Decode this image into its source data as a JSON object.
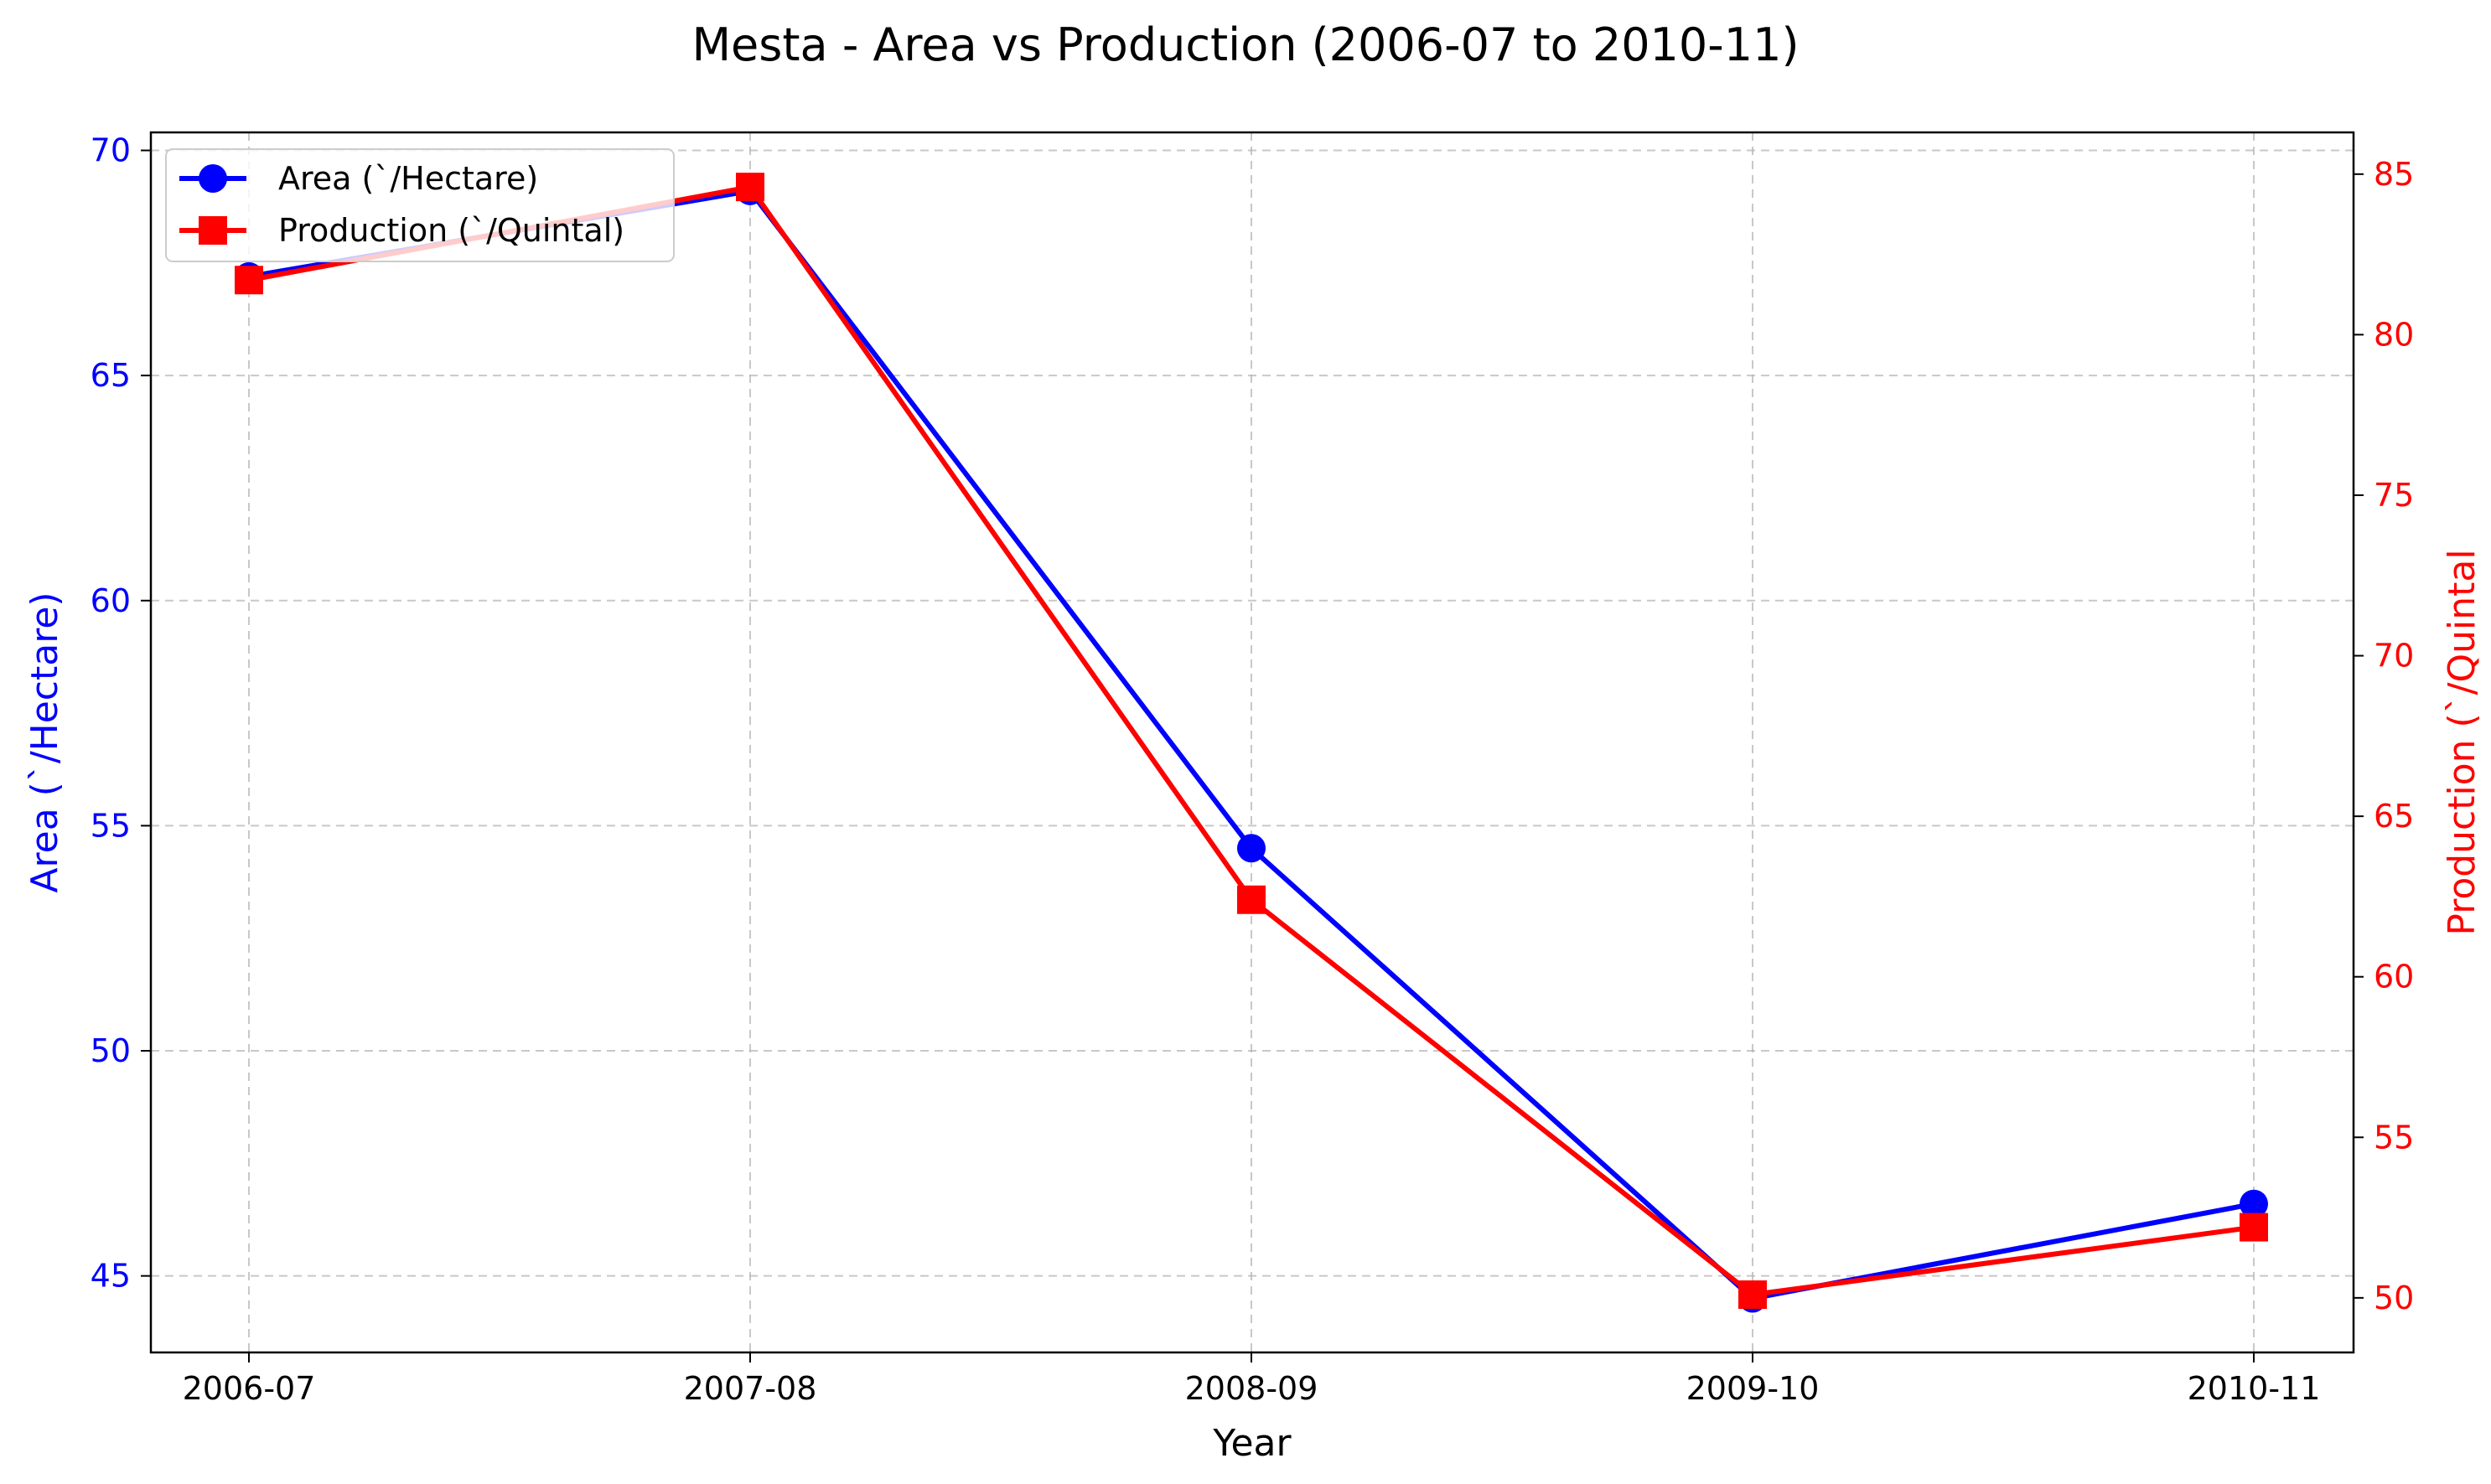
{
  "chart_data": {
    "type": "line",
    "title": "Mesta - Area vs Production (2006-07 to 2010-11)",
    "xlabel": "Year",
    "ylabel_left": "Area (`/Hectare)",
    "ylabel_right": "Production (`/Quintal",
    "categories": [
      "2006-07",
      "2007-08",
      "2008-09",
      "2009-10",
      "2010-11"
    ],
    "y_left": {
      "ylim": [
        43.3,
        70.4
      ],
      "ticks": [
        45,
        50,
        55,
        60,
        65,
        70
      ],
      "color": "#0000ff"
    },
    "y_right": {
      "ylim": [
        48.3,
        86.3
      ],
      "ticks": [
        50,
        55,
        60,
        65,
        70,
        75,
        80,
        85
      ],
      "color": "#ff0000"
    },
    "grid": true,
    "legend_position": "top-left",
    "series": [
      {
        "name": "Area (`/Hectare)",
        "axis": "left",
        "color": "#0000ff",
        "marker": "circle",
        "values": [
          67.2,
          69.1,
          54.5,
          44.5,
          46.6
        ]
      },
      {
        "name": "Production (`/Quintal)",
        "axis": "right",
        "color": "#ff0000",
        "marker": "square",
        "values": [
          81.7,
          84.6,
          62.4,
          50.1,
          52.2
        ]
      }
    ]
  }
}
